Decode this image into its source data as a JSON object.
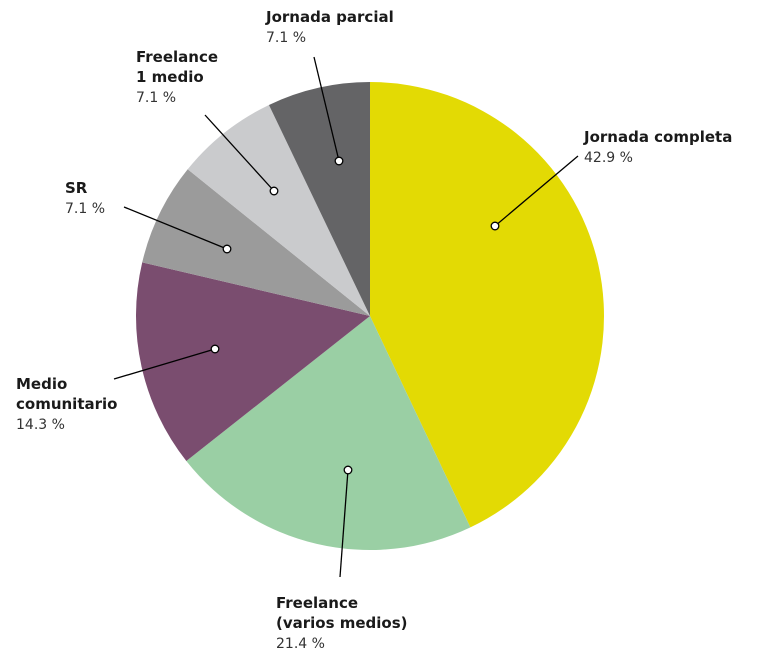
{
  "chart_data": {
    "type": "pie",
    "title": "",
    "slices": [
      {
        "name": "Jornada completa",
        "label_lines": [
          "Jornada completa"
        ],
        "value_label": "42.9 %",
        "value": 42.9,
        "color": "#E3DA04"
      },
      {
        "name": "Freelance (varios medios)",
        "label_lines": [
          "Freelance",
          "(varios medios)"
        ],
        "value_label": "21.4 %",
        "value": 21.4,
        "color": "#9ACFA4"
      },
      {
        "name": "Medio comunitario",
        "label_lines": [
          "Medio",
          "comunitario"
        ],
        "value_label": "14.3 %",
        "value": 14.3,
        "color": "#7A4D6F"
      },
      {
        "name": "SR",
        "label_lines": [
          "SR"
        ],
        "value_label": "7.1 %",
        "value": 7.1,
        "color": "#9B9B9B"
      },
      {
        "name": "Freelance 1 medio",
        "label_lines": [
          "Freelance",
          "1 medio"
        ],
        "value_label": "7.1 %",
        "value": 7.1,
        "color": "#CACBCD"
      },
      {
        "name": "Jornada parcial",
        "label_lines": [
          "Jornada parcial"
        ],
        "value_label": "7.1 %",
        "value": 7.1,
        "color": "#646466"
      }
    ],
    "start": "12 o'clock",
    "direction": "clockwise",
    "legend": "none"
  }
}
